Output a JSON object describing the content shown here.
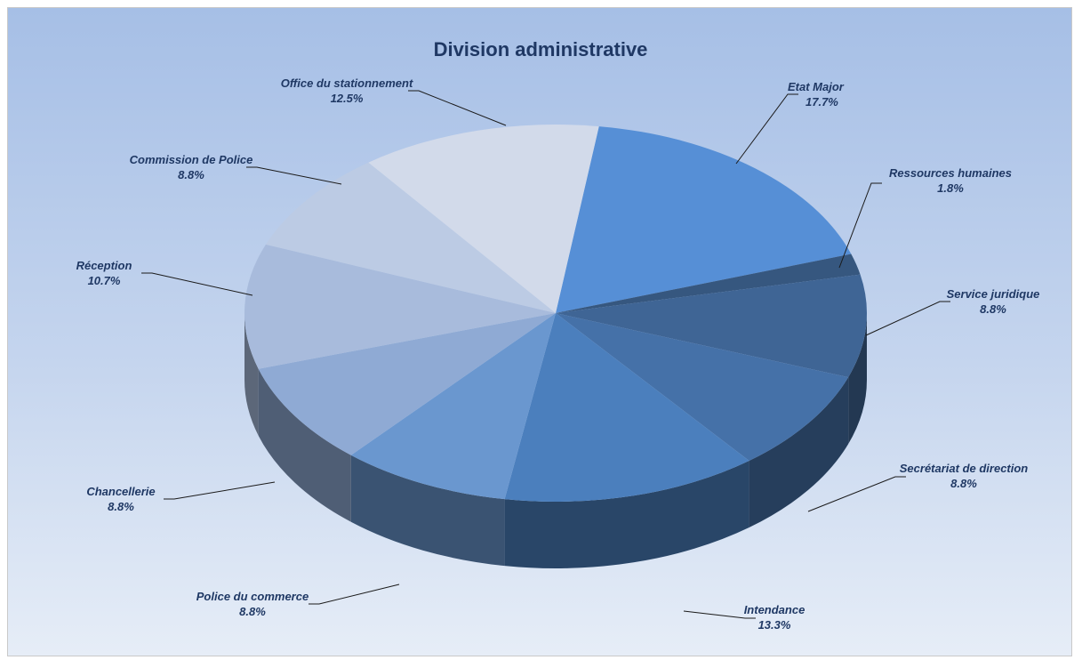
{
  "chart_data": {
    "type": "pie",
    "title": "Division administrative",
    "three_d": true,
    "slices": [
      {
        "label": "Etat Major",
        "value": 17.7,
        "display": "17.7%",
        "color": "#568fd6"
      },
      {
        "label": "Ressources humaines",
        "value": 1.8,
        "display": "1.8%",
        "color": "#36577f"
      },
      {
        "label": "Service juridique",
        "value": 8.8,
        "display": "8.8%",
        "color": "#3f6595"
      },
      {
        "label": "Secrétariat de direction",
        "value": 8.8,
        "display": "8.8%",
        "color": "#4571a8"
      },
      {
        "label": "Intendance",
        "value": 13.3,
        "display": "13.3%",
        "color": "#4b7fbd"
      },
      {
        "label": "Police du commerce",
        "value": 8.8,
        "display": "8.8%",
        "color": "#6a97cf"
      },
      {
        "label": "Chancellerie",
        "value": 8.8,
        "display": "8.8%",
        "color": "#8faad4"
      },
      {
        "label": "Réception",
        "value": 10.7,
        "display": "10.7%",
        "color": "#a8bbdc"
      },
      {
        "label": "Commission de Police",
        "value": 8.8,
        "display": "8.8%",
        "color": "#bccbe4"
      },
      {
        "label": "Office du stationnement",
        "value": 12.5,
        "display": "12.5%",
        "color": "#d2daea"
      }
    ]
  }
}
